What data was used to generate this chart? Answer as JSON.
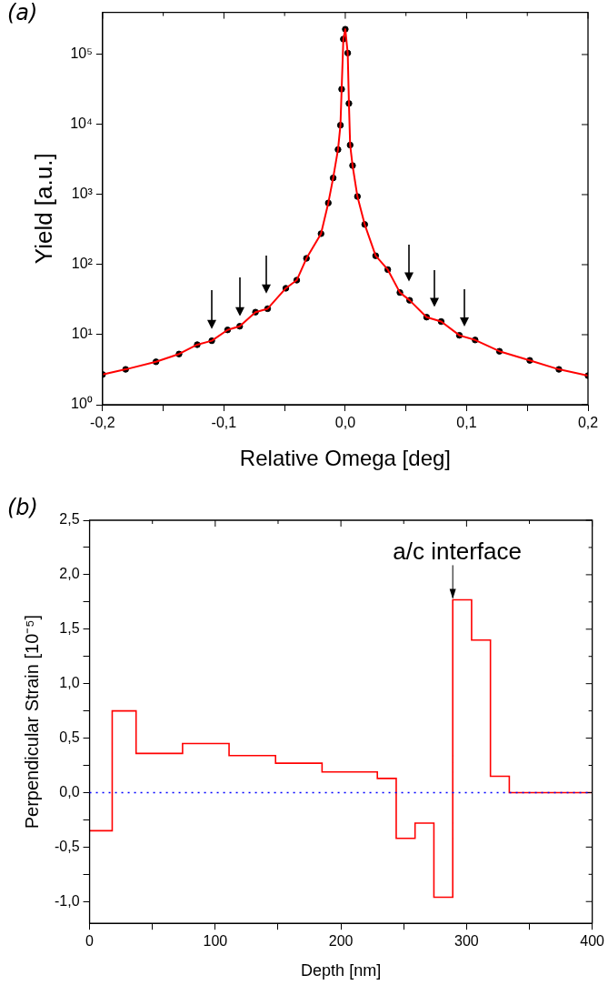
{
  "chart_data": [
    {
      "type": "scatter",
      "title": "(a)",
      "xlabel": "Relative Omega [deg]",
      "ylabel": "Yield [a.u.]",
      "x": [
        -0.2,
        -0.181,
        -0.156,
        -0.137,
        -0.122,
        -0.11,
        -0.097,
        -0.087,
        -0.074,
        -0.064,
        -0.049,
        -0.04,
        -0.032,
        -0.02,
        -0.014,
        -0.01,
        -0.006,
        -0.004,
        -0.003,
        -0.0016,
        0,
        0.002,
        0.003,
        0.004,
        0.006,
        0.01,
        0.016,
        0.025,
        0.035,
        0.045,
        0.053,
        0.067,
        0.079,
        0.094,
        0.107,
        0.127,
        0.152,
        0.176,
        0.2
      ],
      "series": [
        {
          "marker": "circle",
          "color": "#000000",
          "values": [
            2.7,
            3.2,
            4.1,
            5.3,
            7.2,
            8.2,
            11.7,
            13.2,
            21,
            23.5,
            46,
            60,
            123,
            277,
            760,
            1730,
            4400,
            9800,
            32000,
            166000,
            230000,
            105000,
            20000,
            5100,
            2600,
            940,
            375,
            134,
            85,
            40,
            31,
            17.8,
            15.4,
            9.8,
            8.4,
            5.8,
            4.3,
            3.2,
            2.6
          ]
        },
        {
          "type": "line",
          "marker": "none",
          "color": "#ff0000",
          "values": [
            2.7,
            3.2,
            4.1,
            5.3,
            7.2,
            8.2,
            11.7,
            13.2,
            21,
            23.5,
            46,
            60,
            123,
            277,
            760,
            1730,
            4400,
            9800,
            32000,
            166000,
            230000,
            105000,
            20000,
            5100,
            2600,
            940,
            375,
            134,
            85,
            40,
            31,
            17.8,
            15.4,
            9.8,
            8.4,
            5.8,
            4.3,
            3.2,
            2.6
          ]
        }
      ],
      "log": "y",
      "legend": false,
      "grid": false,
      "xlim": [
        -0.2,
        0.2
      ],
      "xticks": [
        {
          "value": -0.2,
          "label": "-0,2"
        },
        {
          "value": -0.15,
          "label": null
        },
        {
          "value": -0.1,
          "label": "-0,1"
        },
        {
          "value": -0.05,
          "label": null
        },
        {
          "value": 0,
          "label": "0,0"
        },
        {
          "value": 0.05,
          "label": null
        },
        {
          "value": 0.1,
          "label": "0,1"
        },
        {
          "value": 0.15,
          "label": null
        },
        {
          "value": 0.2,
          "label": "0,2"
        }
      ],
      "ylim": [
        1,
        400000
      ],
      "yticks": [
        {
          "value": 1,
          "label": "10⁰"
        },
        {
          "value": 10,
          "label": "10¹"
        },
        {
          "value": 100,
          "label": "10²"
        },
        {
          "value": 1000,
          "label": "10³"
        },
        {
          "value": 10000,
          "label": "10⁴"
        },
        {
          "value": 100000,
          "label": "10⁵"
        }
      ]
    },
    {
      "type": "step",
      "title": "(b)",
      "xlabel": "Depth [nm]",
      "ylabel": "Perpendicular Strain [10⁻⁵]",
      "x": [
        0,
        18,
        37,
        74,
        111,
        148,
        185,
        229,
        244,
        259,
        274,
        289,
        304,
        319,
        334,
        400
      ],
      "series": [
        {
          "color": "#ff0000",
          "values": [
            -0.35,
            0.75,
            0.36,
            0.45,
            0.34,
            0.27,
            0.19,
            0.13,
            -0.42,
            -0.28,
            -0.96,
            1.77,
            1.4,
            0.15,
            0,
            0
          ]
        }
      ],
      "legend": false,
      "grid": false,
      "xlim": [
        0,
        400
      ],
      "xticks": [
        0,
        {
          "value": 50,
          "label": null
        },
        100,
        {
          "value": 150,
          "label": null
        },
        200,
        {
          "value": 250,
          "label": null
        },
        300,
        {
          "value": 350,
          "label": null
        },
        400
      ],
      "ylim": [
        -1.2,
        2.5
      ],
      "yticks": [
        {
          "value": -1,
          "label": "-1,0"
        },
        {
          "value": -0.75,
          "label": null
        },
        {
          "value": -0.5,
          "label": "-0,5"
        },
        {
          "value": -0.25,
          "label": null
        },
        {
          "value": 0,
          "label": "0,0"
        },
        {
          "value": 0.25,
          "label": null
        },
        {
          "value": 0.5,
          "label": "0,5"
        },
        {
          "value": 0.75,
          "label": null
        },
        {
          "value": 1,
          "label": "1,0"
        },
        {
          "value": 1.25,
          "label": null
        },
        {
          "value": 1.5,
          "label": "1,5"
        },
        {
          "value": 1.75,
          "label": null
        },
        {
          "value": 2,
          "label": "2,0"
        },
        {
          "value": 2.25,
          "label": null
        },
        {
          "value": 2.5,
          "label": "2,5"
        }
      ],
      "ref_lines": [
        {
          "axis": "y",
          "value": 0,
          "color": "#0000ff",
          "line_style": "dotted"
        }
      ],
      "annotations": [
        {
          "text": "a/c interface",
          "x": 289,
          "y": 1.77
        }
      ]
    }
  ]
}
